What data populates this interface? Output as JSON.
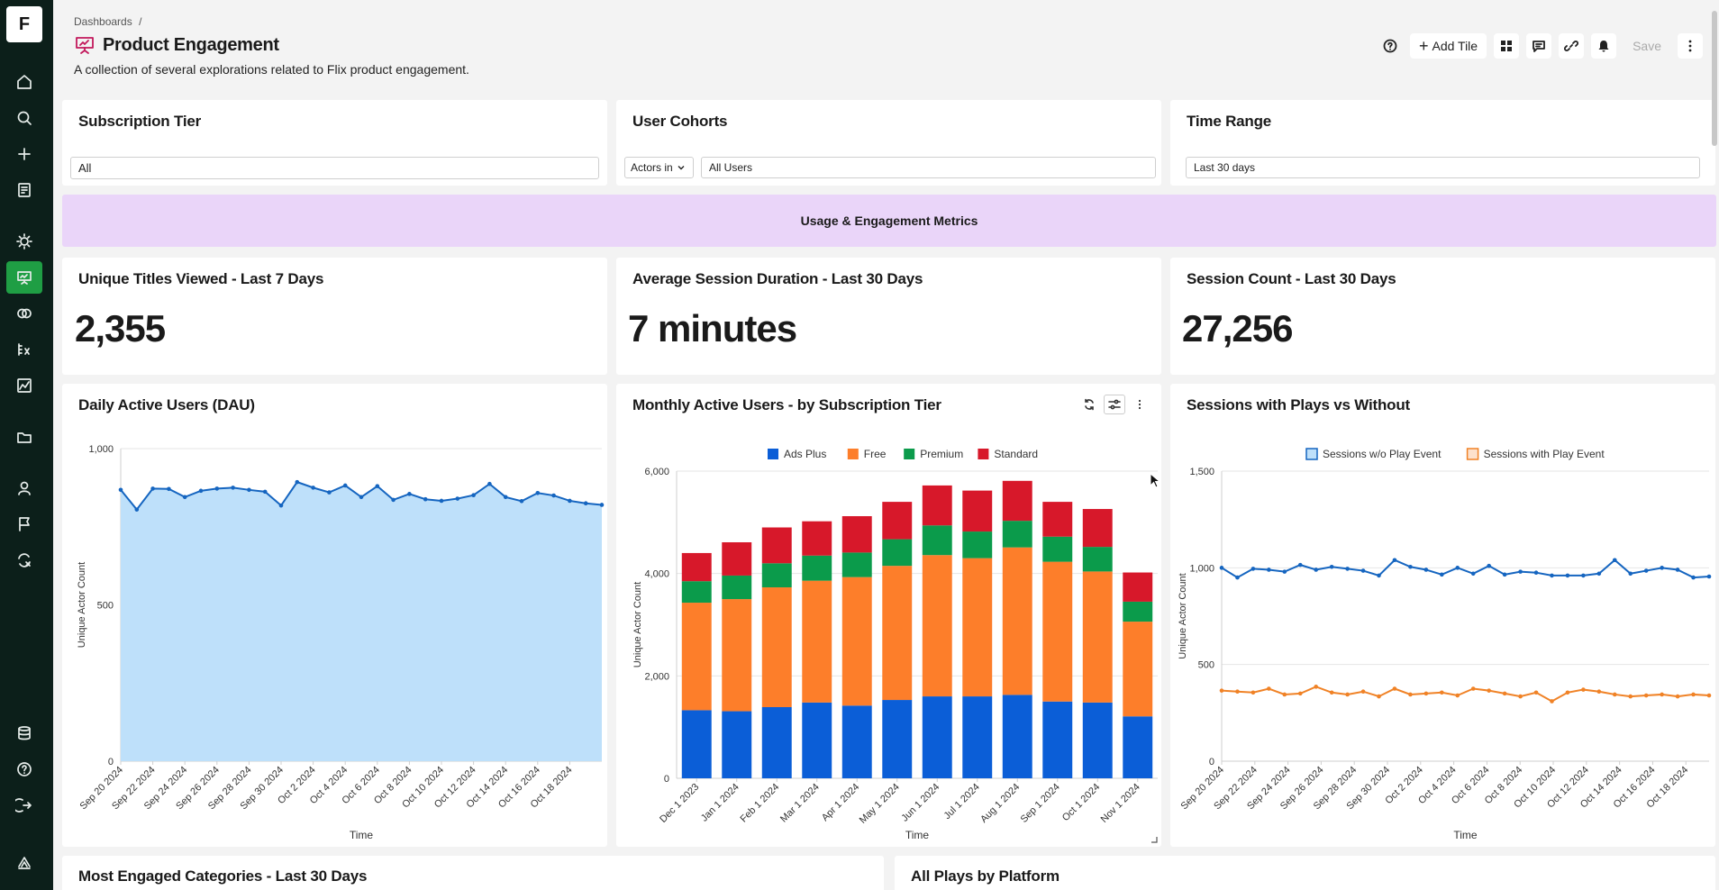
{
  "sidebar": {
    "logo": "F",
    "items": [
      {
        "name": "home",
        "icon": "home-icon"
      },
      {
        "name": "search",
        "icon": "search-icon"
      },
      {
        "name": "create",
        "icon": "plus-icon"
      },
      {
        "name": "notebooks",
        "icon": "notebook-icon"
      },
      {
        "name": "insights",
        "icon": "lightbulb-icon"
      },
      {
        "name": "dashboards",
        "icon": "dashboard-icon"
      },
      {
        "name": "cohorts",
        "icon": "cohorts-icon"
      },
      {
        "name": "metrics",
        "icon": "metrics-icon"
      },
      {
        "name": "reports",
        "icon": "chart-icon"
      },
      {
        "name": "folders",
        "icon": "folder-icon"
      },
      {
        "name": "users",
        "icon": "user-icon"
      },
      {
        "name": "flags",
        "icon": "flag-icon"
      },
      {
        "name": "experiments",
        "icon": "experiment-icon"
      },
      {
        "name": "data",
        "icon": "database-icon"
      },
      {
        "name": "help",
        "icon": "help-icon"
      },
      {
        "name": "logout",
        "icon": "logout-icon"
      },
      {
        "name": "brand",
        "icon": "brand-icon"
      }
    ]
  },
  "header": {
    "breadcrumb": "Dashboards",
    "breadcrumb_sep": "/",
    "title": "Product Engagement",
    "description": "A collection of several explorations related to Flix product engagement.",
    "add_tile_label": "Add Tile",
    "save_label": "Save"
  },
  "filters": {
    "subscription_tier": {
      "title": "Subscription Tier",
      "value": "All"
    },
    "user_cohorts": {
      "title": "User Cohorts",
      "mode": "Actors in",
      "value": "All Users"
    },
    "time_range": {
      "title": "Time Range",
      "value": "Last 30 days"
    }
  },
  "section": {
    "label": "Usage & Engagement Metrics"
  },
  "kpis": [
    {
      "title": "Unique Titles Viewed - Last 7 Days",
      "value": "2,355"
    },
    {
      "title": "Average Session Duration - Last 30 Days",
      "value": "7 minutes"
    },
    {
      "title": "Session Count - Last 30 Days",
      "value": "27,256"
    }
  ],
  "bottom_tiles": {
    "left": "Most Engaged Categories - Last 30 Days",
    "right": "All Plays by Platform"
  },
  "colors": {
    "accent": "#1f9e44",
    "sidebar_bg": "#0c1f1a",
    "banner": "#ead5f9",
    "ads_plus": "#0b5ed7",
    "free": "#fd7e2a",
    "premium": "#0b9b4b",
    "standard": "#d7182a",
    "area_fill": "#bee0fa",
    "line_blue": "#1565c0",
    "line_orange": "#f08226"
  },
  "chart_data": [
    {
      "type": "area",
      "title": "Daily Active Users (DAU)",
      "xlabel": "Time",
      "ylabel": "Unique Actor Count",
      "ylim": [
        0,
        1000
      ],
      "yticks": [
        "0",
        "500",
        "1,000"
      ],
      "tick_labels": [
        "Sep 20 2024",
        "Sep 22 2024",
        "Sep 24 2024",
        "Sep 26 2024",
        "Sep 28 2024",
        "Sep 30 2024",
        "Oct 2 2024",
        "Oct 4 2024",
        "Oct 6 2024",
        "Oct 8 2024",
        "Oct 10 2024",
        "Oct 12 2024",
        "Oct 14 2024",
        "Oct 16 2024",
        "Oct 18 2024"
      ],
      "values": [
        868,
        805,
        872,
        871,
        845,
        865,
        872,
        875,
        868,
        862,
        818,
        893,
        875,
        860,
        882,
        845,
        880,
        836,
        855,
        838,
        833,
        840,
        851,
        887,
        845,
        832,
        858,
        850,
        833,
        825,
        820
      ]
    },
    {
      "type": "bar",
      "stacked": true,
      "title": "Monthly Active Users - by Subscription Tier",
      "xlabel": "Time",
      "ylabel": "Unique Actor Count",
      "ylim": [
        0,
        6000
      ],
      "yticks": [
        "0",
        "2,000",
        "4,000",
        "6,000"
      ],
      "categories": [
        "Dec 1 2023",
        "Jan 1 2024",
        "Feb 1 2024",
        "Mar 1 2024",
        "Apr 1 2024",
        "May 1 2024",
        "Jun 1 2024",
        "Jul 1 2024",
        "Aug 1 2024",
        "Sep 1 2024",
        "Oct 1 2024",
        "Nov 1 2024"
      ],
      "tick_labels": [
        "Dec 1 2023",
        "Jan 1 2024",
        "Feb 1 2024",
        "Mar 1 2024",
        "Apr 1 2024",
        "May 1 2024",
        "Jun 1 2024",
        "Jul 1 2024",
        "Aug 1 2024",
        "Sep 1 2024",
        "Oct 1 2024",
        "Nov 1 2024"
      ],
      "series": [
        {
          "name": "Ads Plus",
          "values": [
            1330,
            1310,
            1390,
            1480,
            1420,
            1530,
            1600,
            1600,
            1630,
            1500,
            1480,
            1210
          ]
        },
        {
          "name": "Free",
          "values": [
            2100,
            2190,
            2340,
            2380,
            2510,
            2620,
            2760,
            2700,
            2880,
            2730,
            2560,
            1850
          ]
        },
        {
          "name": "Premium",
          "values": [
            420,
            460,
            470,
            490,
            480,
            520,
            580,
            520,
            520,
            490,
            480,
            390
          ]
        },
        {
          "name": "Standard",
          "values": [
            550,
            650,
            700,
            670,
            710,
            730,
            780,
            800,
            780,
            680,
            740,
            570
          ]
        }
      ]
    },
    {
      "type": "line",
      "title": "Sessions with Plays vs Without",
      "xlabel": "Time",
      "ylabel": "Unique Actor Count",
      "ylim": [
        0,
        1500
      ],
      "yticks": [
        "0",
        "500",
        "1,000",
        "1,500"
      ],
      "tick_labels": [
        "Sep 20 2024",
        "Sep 22 2024",
        "Sep 24 2024",
        "Sep 26 2024",
        "Sep 28 2024",
        "Sep 30 2024",
        "Oct 2 2024",
        "Oct 4 2024",
        "Oct 6 2024",
        "Oct 8 2024",
        "Oct 10 2024",
        "Oct 12 2024",
        "Oct 14 2024",
        "Oct 16 2024",
        "Oct 18 2024"
      ],
      "series": [
        {
          "name": "Sessions w/o Play Event",
          "values": [
            1000,
            950,
            995,
            990,
            980,
            1015,
            990,
            1005,
            995,
            985,
            960,
            1040,
            1005,
            990,
            965,
            1000,
            970,
            1010,
            965,
            980,
            975,
            960,
            960,
            960,
            970,
            1040,
            970,
            985,
            1000,
            990,
            950,
            955
          ]
        },
        {
          "name": "Sessions with Play Event",
          "values": [
            365,
            360,
            355,
            375,
            345,
            350,
            385,
            355,
            345,
            360,
            335,
            375,
            345,
            350,
            355,
            340,
            375,
            365,
            350,
            335,
            355,
            310,
            355,
            370,
            360,
            345,
            335,
            340,
            345,
            335,
            345,
            340
          ]
        }
      ]
    }
  ]
}
